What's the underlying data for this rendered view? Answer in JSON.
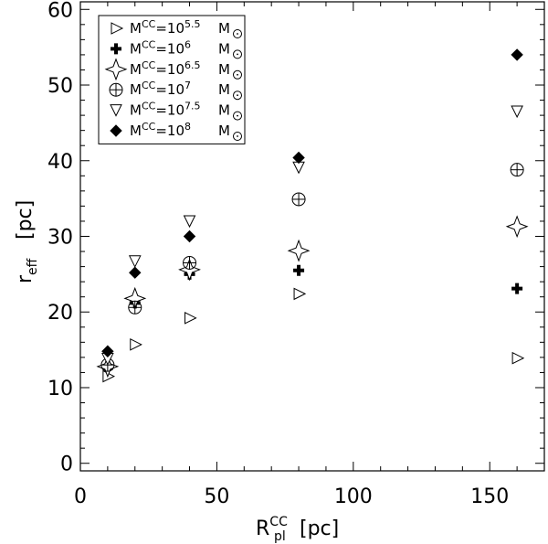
{
  "chart_data": {
    "type": "scatter",
    "xlabel": {
      "base": "R",
      "sup": "CC",
      "sub": "pl",
      "unit": "[pc]"
    },
    "ylabel": {
      "base": "r",
      "sub": "eff",
      "unit": "[pc]"
    },
    "xlim": [
      0,
      170
    ],
    "ylim": [
      -1,
      61
    ],
    "xticks": [
      0,
      50,
      100,
      150
    ],
    "yticks": [
      0,
      10,
      20,
      30,
      40,
      50,
      60
    ],
    "grid": false,
    "legend_position": "top-left",
    "series": [
      {
        "name": "M^CC=10^5.5 M_sun",
        "legend": {
          "pre": "M",
          "sup1": "CC",
          "eq": "=10",
          "sup2": "5.5",
          "unit": "M"
        },
        "marker": "triangle-right",
        "x": [
          10,
          20,
          40,
          80,
          160
        ],
        "y": [
          11.5,
          15.7,
          19.2,
          22.4,
          13.9
        ]
      },
      {
        "name": "M^CC=10^6 M_sun",
        "legend": {
          "pre": "M",
          "sup1": "CC",
          "eq": "=10",
          "sup2": "6",
          "unit": "M"
        },
        "marker": "plus",
        "x": [
          10,
          20,
          40,
          80,
          160
        ],
        "y": [
          12.6,
          21.2,
          25.0,
          25.5,
          23.1
        ]
      },
      {
        "name": "M^CC=10^6.5 M_sun",
        "legend": {
          "pre": "M",
          "sup1": "CC",
          "eq": "=10",
          "sup2": "6.5",
          "unit": "M"
        },
        "marker": "star4",
        "x": [
          10,
          20,
          40,
          80,
          160
        ],
        "y": [
          12.8,
          21.8,
          25.6,
          28.1,
          31.3
        ]
      },
      {
        "name": "M^CC=10^7 M_sun",
        "legend": {
          "pre": "M",
          "sup1": "CC",
          "eq": "=10",
          "sup2": "7",
          "unit": "M"
        },
        "marker": "circle-plus",
        "x": [
          10,
          20,
          40,
          80,
          160
        ],
        "y": [
          13.0,
          20.6,
          26.5,
          34.9,
          38.8
        ]
      },
      {
        "name": "M^CC=10^7.5 M_sun",
        "legend": {
          "pre": "M",
          "sup1": "CC",
          "eq": "=10",
          "sup2": "7.5",
          "unit": "M"
        },
        "marker": "triangle-down",
        "x": [
          10,
          20,
          40,
          80,
          160
        ],
        "y": [
          13.8,
          26.7,
          32.0,
          39.1,
          46.5
        ]
      },
      {
        "name": "M^CC=10^8 M_sun",
        "legend": {
          "pre": "M",
          "sup1": "CC",
          "eq": "=10",
          "sup2": "8",
          "unit": "M"
        },
        "marker": "diamond-filled",
        "x": [
          10,
          20,
          40,
          80,
          160
        ],
        "y": [
          14.8,
          25.2,
          30.0,
          40.4,
          54.0
        ]
      }
    ]
  }
}
